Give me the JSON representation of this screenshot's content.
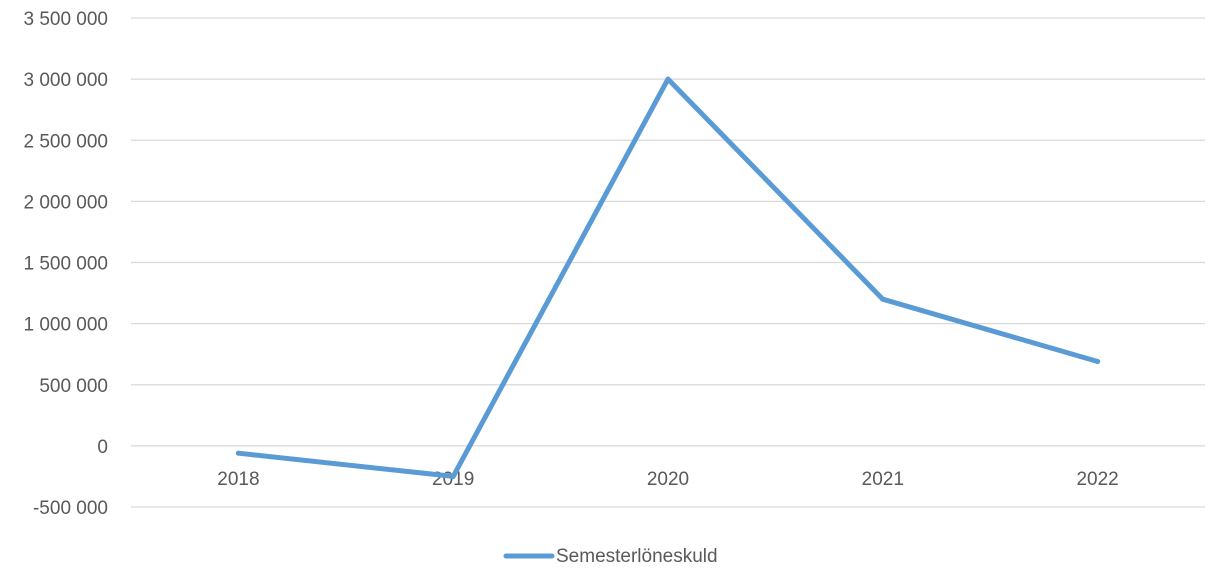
{
  "chart_data": {
    "type": "line",
    "title": "",
    "xlabel": "",
    "ylabel": "",
    "categories": [
      "2018",
      "2019",
      "2020",
      "2021",
      "2022"
    ],
    "series": [
      {
        "name": "Semesterlöneskuld",
        "values": [
          -60000,
          -250000,
          3000000,
          1200000,
          690000
        ],
        "color": "#5b9bd5"
      }
    ],
    "ylim": [
      -500000,
      3500000
    ],
    "yticks": [
      -500000,
      0,
      500000,
      1000000,
      1500000,
      2000000,
      2500000,
      3000000,
      3500000
    ],
    "ytick_labels": [
      "-500 000",
      "0",
      "500 000",
      "1 000 000",
      "1 500 000",
      "2 000 000",
      "2 500 000",
      "3 000 000",
      "3 500 000"
    ],
    "grid": true,
    "legend_position": "bottom"
  }
}
